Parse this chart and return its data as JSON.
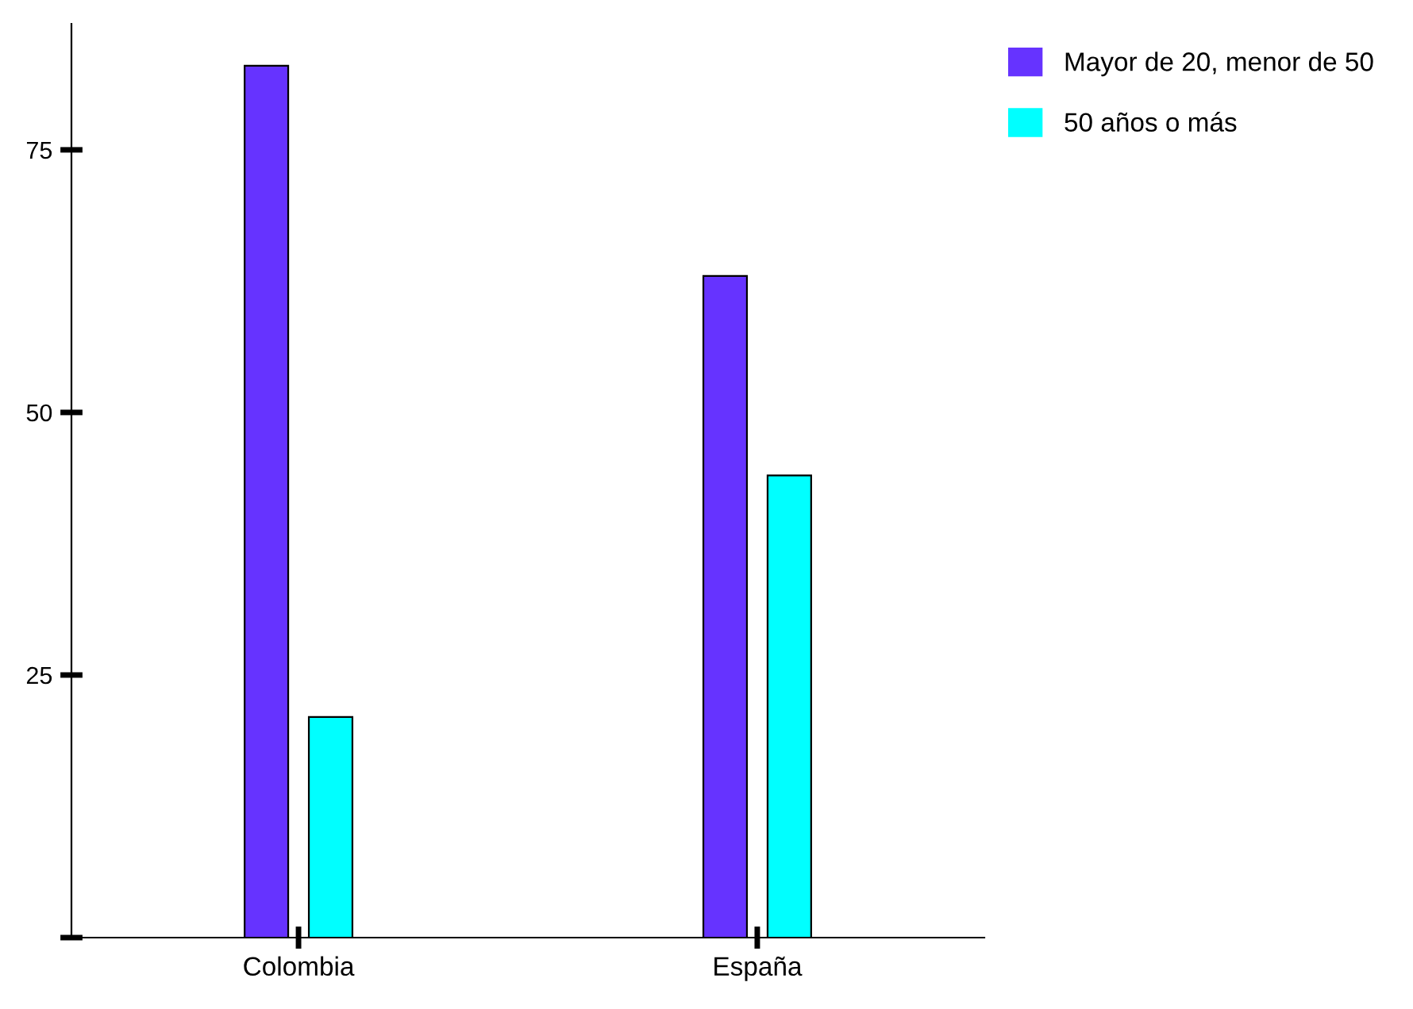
{
  "chart_data": {
    "type": "bar",
    "categories": [
      "Colombia",
      "España"
    ],
    "series": [
      {
        "name": "Mayor de 20, menor de 50",
        "color": "#6633ff",
        "values": [
          83,
          63
        ]
      },
      {
        "name": "50 años o más",
        "color": "#00ffff",
        "values": [
          21,
          44
        ]
      }
    ],
    "ylim": [
      0,
      87
    ],
    "yticks": [
      {
        "value": 0,
        "label": null
      },
      25,
      50,
      75
    ],
    "grid": false,
    "legend": "top right"
  }
}
